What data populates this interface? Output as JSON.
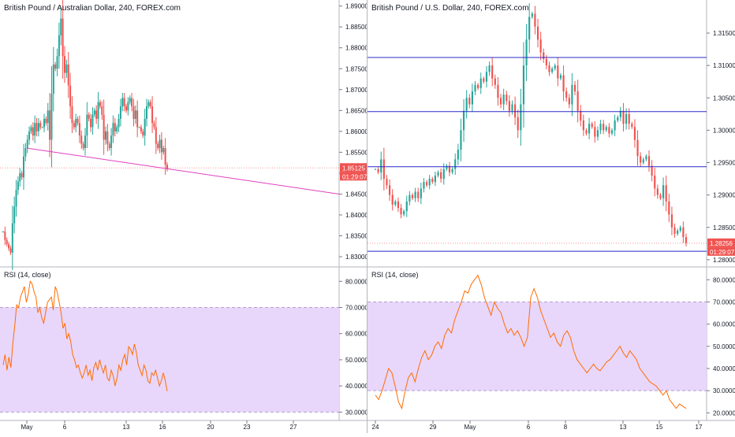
{
  "left": {
    "title": "British Pound / Australian Dollar, 240, FOREX.com",
    "price_badge": "1.85125",
    "timer_badge": "01:29:07",
    "rsi_title": "RSI (14, close)",
    "colors": {
      "up": "#26a69a",
      "down": "#ef5350",
      "trendline": "#e040c0",
      "rsi": "#ff6d00",
      "rsi_band": "#e9d6fb",
      "badge": "#ef5350"
    }
  },
  "right": {
    "title": "British Pound / U.S. Dollar, 240, FOREX.com",
    "price_badge": "1.28256",
    "timer_badge": "01:29:07",
    "rsi_title": "RSI (14, close)",
    "colors": {
      "up": "#26a69a",
      "down": "#ef5350",
      "hline": "#2828c8",
      "rsi": "#ff6d00",
      "rsi_band": "#e9d6fb",
      "badge": "#ef5350"
    }
  },
  "chart_data": [
    {
      "type": "candlestick",
      "title": "British Pound / Australian Dollar, 240, FOREX.com",
      "yticks": [
        "1.89000",
        "1.88500",
        "1.88000",
        "1.87500",
        "1.87000",
        "1.86500",
        "1.86000",
        "1.85500",
        "1.85000",
        "1.84500",
        "1.84000",
        "1.83500",
        "1.83000"
      ],
      "ylim": [
        1.8285,
        1.8905
      ],
      "xticks": [
        "May",
        "6",
        "13",
        "16",
        "20",
        "23",
        "27"
      ],
      "last_price": 1.85125,
      "trendline": [
        [
          0.0,
          1.856
        ],
        [
          1.0,
          1.845
        ]
      ],
      "closes": [
        1.836,
        1.834,
        1.833,
        1.832,
        1.831,
        1.838,
        1.842,
        1.846,
        1.848,
        1.85,
        1.849,
        1.854,
        1.856,
        1.858,
        1.86,
        1.861,
        1.859,
        1.862,
        1.86,
        1.862,
        1.861,
        1.861,
        1.863,
        1.862,
        1.865,
        1.858,
        1.869,
        1.876,
        1.875,
        1.878,
        1.883,
        1.887,
        1.878,
        1.874,
        1.876,
        1.871,
        1.866,
        1.862,
        1.861,
        1.863,
        1.862,
        1.859,
        1.857,
        1.856,
        1.859,
        1.864,
        1.863,
        1.861,
        1.864,
        1.865,
        1.863,
        1.867,
        1.866,
        1.864,
        1.858,
        1.86,
        1.857,
        1.856,
        1.859,
        1.862,
        1.86,
        1.861,
        1.863,
        1.866,
        1.868,
        1.866,
        1.865,
        1.867,
        1.868,
        1.866,
        1.863,
        1.865,
        1.861,
        1.861,
        1.86,
        1.859,
        1.863,
        1.866,
        1.867,
        1.866,
        1.862,
        1.861,
        1.857,
        1.856,
        1.858,
        1.855,
        1.856,
        1.852,
        1.851
      ],
      "rsi": {
        "ylim": [
          28,
          84
        ],
        "yticks": [
          "80.0000",
          "70.0000",
          "60.0000",
          "50.0000",
          "40.0000",
          "30.0000"
        ],
        "band": [
          30,
          70
        ],
        "values": [
          48,
          52,
          46,
          51,
          47,
          56,
          63,
          71,
          70,
          74,
          76,
          78,
          72,
          75,
          80,
          79,
          76,
          74,
          68,
          70,
          66,
          64,
          68,
          72,
          73,
          74,
          69,
          78,
          76,
          72,
          68,
          62,
          64,
          58,
          60,
          57,
          52,
          50,
          47,
          48,
          45,
          43,
          45,
          48,
          44,
          46,
          42,
          47,
          49,
          46,
          50,
          47,
          45,
          48,
          43,
          42,
          46,
          44,
          40,
          43,
          48,
          46,
          50,
          52,
          48,
          55,
          54,
          52,
          56,
          53,
          48,
          46,
          44,
          48,
          46,
          42,
          41,
          45,
          44,
          46,
          43,
          40,
          42,
          45,
          42,
          38
        ]
      }
    },
    {
      "type": "candlestick",
      "title": "British Pound / U.S. Dollar, 240, FOREX.com",
      "yticks": [
        "1.31500",
        "1.31000",
        "1.30500",
        "1.30000",
        "1.29500",
        "1.29000",
        "1.28500",
        "1.28000"
      ],
      "ylim": [
        1.2795,
        1.3195
      ],
      "xticks": [
        "24",
        "29",
        "May",
        "6",
        "8",
        "13",
        "15",
        "17"
      ],
      "last_price": 1.28256,
      "hlines": [
        1.31124,
        1.30288,
        1.29436,
        1.28131
      ],
      "closes": [
        1.294,
        1.2935,
        1.2955,
        1.2925,
        1.2915,
        1.29,
        1.2885,
        1.289,
        1.288,
        1.287,
        1.2875,
        1.289,
        1.29,
        1.2895,
        1.2905,
        1.2895,
        1.291,
        1.292,
        1.2915,
        1.2925,
        1.292,
        1.293,
        1.2935,
        1.2925,
        1.294,
        1.2945,
        1.2935,
        1.294,
        1.2955,
        1.297,
        1.3,
        1.303,
        1.305,
        1.304,
        1.306,
        1.307,
        1.3065,
        1.308,
        1.3075,
        1.309,
        1.31,
        1.308,
        1.307,
        1.305,
        1.304,
        1.3055,
        1.3045,
        1.303,
        1.304,
        1.302,
        1.3,
        1.304,
        1.31,
        1.314,
        1.3175,
        1.318,
        1.316,
        1.314,
        1.312,
        1.311,
        1.31,
        1.309,
        1.3095,
        1.31,
        1.308,
        1.3085,
        1.306,
        1.305,
        1.304,
        1.307,
        1.306,
        1.303,
        1.3015,
        1.3,
        1.2995,
        1.301,
        1.3005,
        1.299,
        1.3,
        1.301,
        1.3,
        1.3005,
        1.2995,
        1.3,
        1.3015,
        1.302,
        1.303,
        1.301,
        1.3025,
        1.301,
        1.3005,
        1.2985,
        1.296,
        1.295,
        1.2955,
        1.296,
        1.2945,
        1.293,
        1.291,
        1.29,
        1.2895,
        1.2915,
        1.289,
        1.287,
        1.285,
        1.284,
        1.2845,
        1.285,
        1.2835,
        1.2826
      ],
      "rsi": {
        "ylim": [
          18,
          84
        ],
        "yticks": [
          "80.0000",
          "70.0000",
          "60.0000",
          "50.0000",
          "40.0000",
          "30.0000",
          "20.0000"
        ],
        "band": [
          30,
          70
        ],
        "values": [
          28,
          26,
          30,
          35,
          40,
          38,
          32,
          25,
          22,
          30,
          36,
          38,
          34,
          40,
          45,
          48,
          44,
          46,
          50,
          52,
          49,
          55,
          58,
          56,
          62,
          66,
          70,
          75,
          74,
          78,
          80,
          82,
          78,
          72,
          68,
          64,
          70,
          67,
          65,
          60,
          56,
          58,
          55,
          57,
          54,
          50,
          54,
          72,
          76,
          72,
          66,
          62,
          58,
          54,
          56,
          52,
          50,
          55,
          57,
          54,
          48,
          44,
          42,
          40,
          38,
          40,
          42,
          40,
          39,
          41,
          43,
          44,
          46,
          48,
          50,
          47,
          45,
          48,
          46,
          44,
          40,
          38,
          36,
          34,
          33,
          32,
          30,
          28,
          30,
          26,
          24,
          22,
          24,
          23,
          22
        ]
      }
    }
  ]
}
